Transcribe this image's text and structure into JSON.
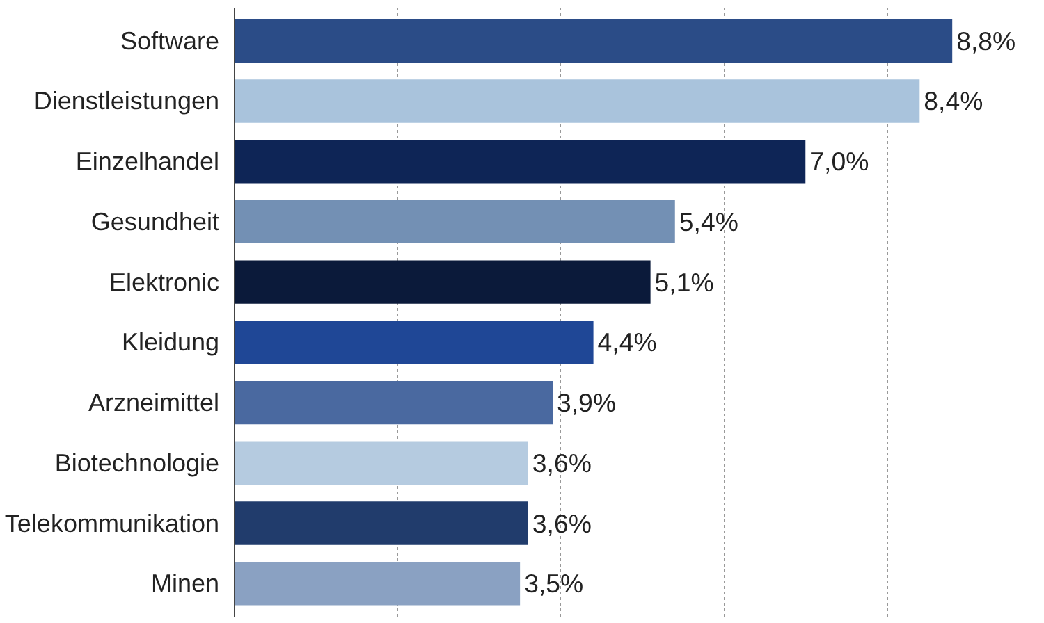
{
  "chart_data": {
    "type": "bar",
    "orientation": "horizontal",
    "categories": [
      "Software",
      "Dienstleistungen",
      "Einzelhandel",
      "Gesundheit",
      "Elektronic",
      "Kleidung",
      "Arzneimittel",
      "Biotechnologie",
      "Telekommunikation",
      "Minen"
    ],
    "values": [
      8.8,
      8.4,
      7.0,
      5.4,
      5.1,
      4.4,
      3.9,
      3.6,
      3.6,
      3.5
    ],
    "colors": [
      "#2b4c87",
      "#a9c3dc",
      "#0e2556",
      "#7390b4",
      "#0b1a3a",
      "#1f4796",
      "#4a69a0",
      "#b5cbe0",
      "#213c6c",
      "#8aa1c2"
    ],
    "value_labels": [
      "8,8%",
      "8,4%",
      "7,0%",
      "5,4%",
      "5,1%",
      "4,4%",
      "3,9%",
      "3,6%",
      "3,6%",
      "3,5%"
    ],
    "xticks": [
      {
        "value": 0,
        "label": null
      },
      {
        "value": 2,
        "label": null
      },
      {
        "value": 4,
        "label": null
      },
      {
        "value": 6,
        "label": null
      },
      {
        "value": 8,
        "label": null
      }
    ],
    "grid": "x",
    "tick_labels": "y"
  }
}
